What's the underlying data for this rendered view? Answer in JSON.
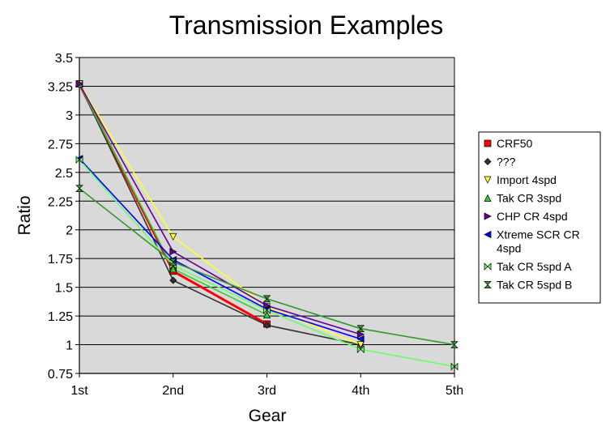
{
  "chart_data": {
    "type": "line",
    "title": "Transmission Examples",
    "xlabel": "Gear",
    "ylabel": "Ratio",
    "categories": [
      "1st",
      "2nd",
      "3rd",
      "4th",
      "5th"
    ],
    "ylim": [
      0.75,
      3.5
    ],
    "yticks": [
      "0.75",
      "1",
      "1.25",
      "1.5",
      "1.75",
      "2",
      "2.25",
      "2.5",
      "2.75",
      "3",
      "3.25",
      "3.5"
    ],
    "grid": true,
    "legend_position": "right",
    "plot_background": "#d9d9d9",
    "series": [
      {
        "name": "CRF50",
        "color": "#ff0000",
        "marker": "square",
        "values": [
          3.27,
          1.64,
          1.18,
          null,
          null
        ]
      },
      {
        "name": "???",
        "color": "#333333",
        "marker": "diamond",
        "values": [
          3.27,
          1.56,
          1.17,
          1.0,
          null
        ]
      },
      {
        "name": "Import 4spd",
        "color": "#ffff33",
        "marker": "triangle-down",
        "values": [
          3.27,
          1.94,
          1.33,
          1.0,
          null
        ]
      },
      {
        "name": "Tak CR 3spd",
        "color": "#33cc33",
        "marker": "triangle-up",
        "values": [
          3.27,
          1.66,
          1.26,
          null,
          null
        ]
      },
      {
        "name": "CHP CR 4spd",
        "color": "#660099",
        "marker": "triangle-right",
        "values": [
          3.27,
          1.81,
          1.34,
          1.09,
          null
        ]
      },
      {
        "name": "Xtreme SCR CR 4spd",
        "color": "#0000ff",
        "marker": "triangle-left",
        "values": [
          2.62,
          1.74,
          1.31,
          1.05,
          null
        ]
      },
      {
        "name": "Tak CR 5spd A",
        "color": "#66ff66",
        "marker": "bowtie",
        "values": [
          2.61,
          1.69,
          1.3,
          0.96,
          0.81
        ]
      },
      {
        "name": "Tak CR 5spd B",
        "color": "#339933",
        "marker": "hourglass",
        "values": [
          2.36,
          1.72,
          1.4,
          1.14,
          1.0
        ]
      }
    ]
  }
}
